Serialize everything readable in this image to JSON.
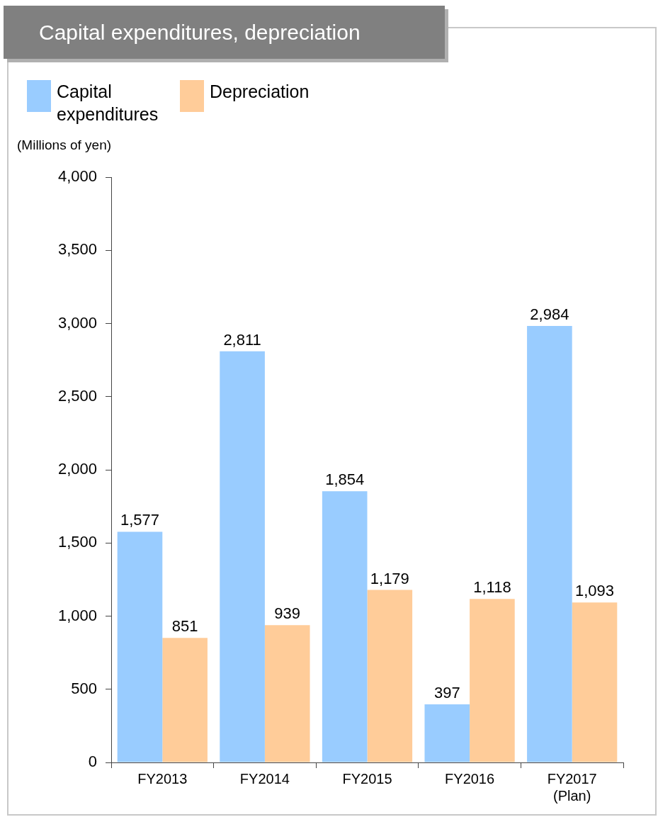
{
  "chart_data": {
    "type": "bar",
    "title": "Capital expenditures, depreciation",
    "ylabel": "(Millions of yen)",
    "categories": [
      "FY2013",
      "FY2014",
      "FY2015",
      "FY2016",
      "FY2017\n(Plan)"
    ],
    "series": [
      {
        "name": "Capital expenditures",
        "color": "#99ccff",
        "values": [
          1577,
          2811,
          1854,
          397,
          2984
        ],
        "value_labels": [
          "1,577",
          "2,811",
          "1,854",
          "397",
          "2,984"
        ]
      },
      {
        "name": "Depreciation",
        "color": "#ffcc99",
        "values": [
          851,
          939,
          1179,
          1118,
          1093
        ],
        "value_labels": [
          "851",
          "939",
          "1,179",
          "1,118",
          "1,093"
        ]
      }
    ],
    "ylim": [
      0,
      4000
    ],
    "yticks": [
      0,
      500,
      {
        "value": 1000,
        "label": "1,000"
      },
      {
        "value": 1500,
        "label": "1,500"
      },
      {
        "value": 2000,
        "label": "2,000"
      },
      {
        "value": 2500,
        "label": "2,500"
      },
      {
        "value": 3000,
        "label": "3,000"
      },
      {
        "value": 3500,
        "label": "3,500"
      },
      {
        "value": 4000,
        "label": "4,000"
      }
    ],
    "grid": false,
    "legend": "top left"
  }
}
